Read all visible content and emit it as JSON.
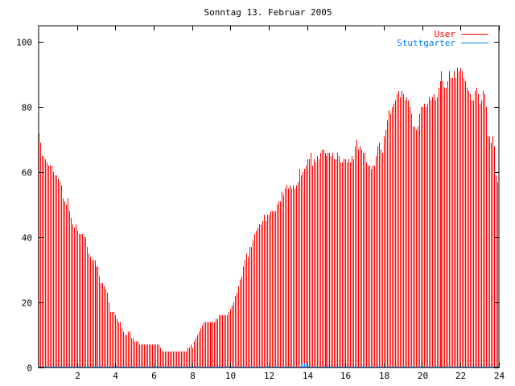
{
  "chart_data": {
    "type": "bar",
    "style": "impulses",
    "title": "Sonntag 13. Februar 2005",
    "xlabel": "",
    "ylabel": "",
    "xlim": [
      0,
      24
    ],
    "ylim": [
      0,
      105
    ],
    "x_step_hours": 0.0833333,
    "x_ticks": [
      "2",
      "4",
      "6",
      "8",
      "10",
      "12",
      "14",
      "16",
      "18",
      "20",
      "22",
      "24"
    ],
    "y_ticks": [
      "0",
      "20",
      "40",
      "60",
      "80",
      "100"
    ],
    "legend_position": "top-right",
    "grid": false,
    "series": [
      {
        "name": "User",
        "color": "#ff0000",
        "values": [
          72,
          69,
          65,
          65,
          64,
          63,
          62,
          62,
          62,
          60,
          59,
          59,
          58,
          57,
          56,
          52,
          51,
          50,
          52,
          48,
          46,
          44,
          43,
          44,
          42,
          41,
          41,
          41,
          40,
          40,
          37,
          35,
          34,
          33,
          33,
          33,
          31,
          31,
          28,
          26,
          26,
          25,
          24,
          23,
          20,
          17,
          17,
          17,
          16,
          15,
          14,
          14,
          12,
          11,
          10,
          10,
          11,
          11,
          9,
          9,
          8,
          8,
          8,
          7,
          7,
          7,
          7,
          7,
          7,
          7,
          7,
          7,
          7,
          7,
          7,
          7,
          6,
          5,
          5,
          5,
          5,
          5,
          5,
          5,
          5,
          5,
          5,
          5,
          5,
          5,
          5,
          5,
          5,
          6,
          6,
          7,
          6,
          8,
          9,
          10,
          11,
          12,
          13,
          14,
          14,
          14,
          14,
          14,
          14,
          14,
          14,
          15,
          15,
          16,
          16,
          16,
          16,
          16,
          16,
          17,
          18,
          19,
          20,
          22,
          23,
          25,
          27,
          28,
          31,
          33,
          35,
          34,
          37,
          37,
          39,
          41,
          42,
          43,
          44,
          44,
          45,
          47,
          45,
          47,
          47,
          48,
          48,
          48,
          48,
          50,
          51,
          51,
          54,
          53,
          55,
          56,
          55,
          56,
          55,
          56,
          55,
          56,
          57,
          61,
          59,
          60,
          61,
          62,
          64,
          64,
          66,
          62,
          64,
          63,
          65,
          64,
          66,
          67,
          67,
          66,
          65,
          66,
          66,
          65,
          66,
          64,
          64,
          66,
          65,
          63,
          63,
          64,
          64,
          63,
          64,
          63,
          65,
          64,
          68,
          70,
          67,
          68,
          67,
          66,
          66,
          63,
          62,
          62,
          61,
          62,
          62,
          65,
          68,
          69,
          67,
          66,
          71,
          73,
          76,
          79,
          78,
          80,
          81,
          82,
          84,
          85,
          83,
          85,
          84,
          82,
          83,
          82,
          80,
          78,
          74,
          74,
          73,
          74,
          78,
          80,
          80,
          81,
          80,
          81,
          83,
          82,
          83,
          84,
          82,
          83,
          86,
          88,
          91,
          88,
          86,
          86,
          88,
          91,
          89,
          89,
          91,
          89,
          92,
          91,
          92,
          91,
          89,
          88,
          86,
          85,
          84,
          82,
          82,
          85,
          86,
          84,
          81,
          82,
          85,
          84,
          80,
          71,
          71,
          69,
          71,
          68,
          59,
          57
        ]
      },
      {
        "name": "Stuttgarter",
        "color": "#0080ff",
        "values": [
          0,
          0,
          0,
          0,
          0,
          0,
          0,
          0,
          0,
          0,
          0,
          0,
          0,
          0,
          0,
          0,
          0,
          0,
          0,
          0,
          0,
          0,
          0,
          0,
          0,
          0,
          0,
          0,
          0,
          0,
          0,
          0,
          0,
          0,
          0,
          0,
          0,
          0,
          0,
          0,
          0,
          0,
          0,
          0,
          0,
          0,
          0,
          0,
          0,
          0,
          0,
          0,
          0,
          0,
          0,
          0,
          0,
          0,
          0,
          0,
          0,
          0,
          0,
          0,
          0,
          0,
          0,
          0,
          0,
          0,
          0,
          0,
          0,
          0,
          0,
          0,
          0,
          0,
          0,
          0,
          0,
          0,
          0,
          0,
          0,
          0,
          0,
          0,
          0,
          0,
          0,
          0,
          0,
          0,
          0,
          0,
          0,
          0,
          0,
          0,
          0,
          0,
          0,
          0,
          0,
          0,
          0,
          0,
          0,
          0,
          0,
          0,
          0,
          0,
          0,
          0,
          0,
          0,
          0,
          0,
          0,
          0,
          0,
          0,
          0,
          0,
          0,
          0,
          0,
          0,
          0,
          0,
          0,
          0,
          0,
          0,
          0,
          0,
          0,
          0,
          0,
          0,
          0,
          0,
          0,
          0,
          0,
          0,
          0,
          0,
          0,
          0,
          0,
          0,
          0,
          0,
          0,
          0,
          0,
          0,
          0,
          0,
          0,
          1,
          1,
          1,
          1,
          1,
          0,
          0,
          0,
          0,
          0,
          0,
          0,
          0,
          0,
          0,
          0,
          0,
          0,
          0,
          0,
          0,
          0,
          0,
          0,
          0,
          0,
          0,
          0,
          0,
          0,
          0,
          0,
          0,
          0,
          0,
          0,
          0,
          0,
          0,
          0,
          0,
          0,
          0,
          0,
          0,
          0,
          0,
          0,
          0,
          0,
          0,
          0,
          0,
          0,
          0,
          0,
          0,
          0,
          0,
          0,
          0,
          0,
          0,
          0,
          0,
          0,
          0,
          0,
          0,
          0,
          0,
          1,
          0,
          0,
          0,
          0,
          0,
          0,
          0,
          0,
          0,
          0,
          0,
          0,
          0,
          0,
          0,
          0,
          0,
          0,
          0,
          0,
          0,
          0,
          0,
          0,
          0,
          0,
          0,
          0,
          0,
          0,
          0,
          0,
          0,
          0,
          0,
          0,
          0,
          0,
          0,
          0,
          0,
          0,
          0,
          0,
          0,
          0,
          0,
          0,
          0,
          0,
          0,
          0,
          0
        ]
      }
    ]
  }
}
